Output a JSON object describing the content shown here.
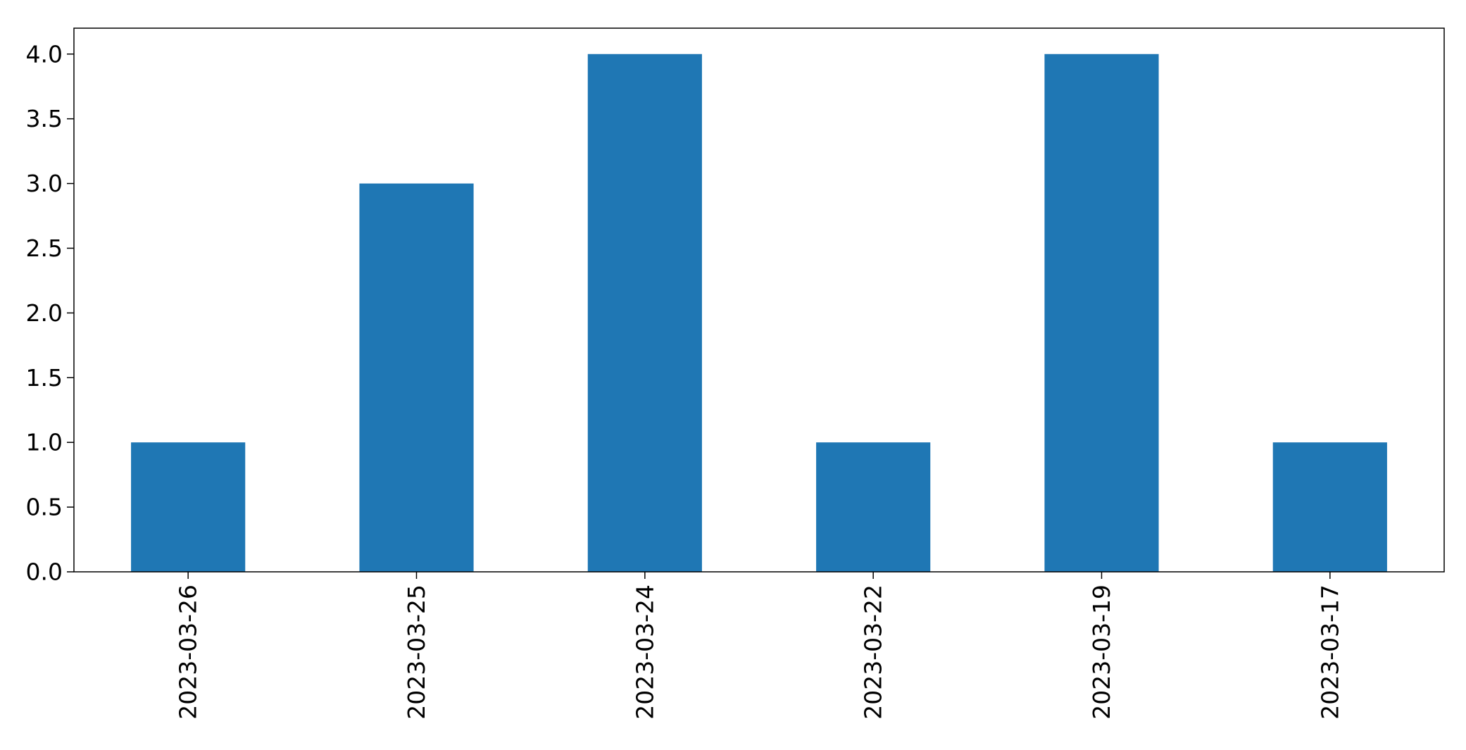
{
  "chart_data": {
    "type": "bar",
    "title": "",
    "xlabel": "",
    "ylabel": "",
    "categories": [
      "2023-03-26",
      "2023-03-25",
      "2023-03-24",
      "2023-03-22",
      "2023-03-19",
      "2023-03-17"
    ],
    "values": [
      1,
      3,
      4,
      1,
      4,
      1
    ],
    "ylim": [
      0,
      4.2
    ],
    "yticks": [
      "0.0",
      "0.5",
      "1.0",
      "1.5",
      "2.0",
      "2.5",
      "3.0",
      "3.5",
      "4.0"
    ],
    "grid": false,
    "legend": "none",
    "bar_color": "#1f77b4",
    "axis_color": "#000000"
  }
}
